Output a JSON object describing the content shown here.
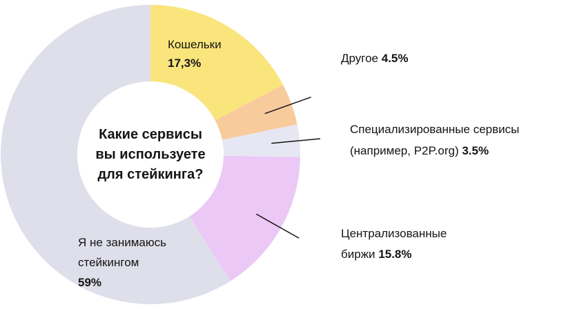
{
  "chart_data": {
    "type": "pie",
    "subtype": "donut",
    "unit": "%",
    "title": "Какие сервисы вы используете для стейкинга?",
    "title_lines": [
      "Какие сервисы",
      "вы используете",
      "для стейкинга?"
    ],
    "start_angle_deg": 0,
    "legend_position": "none",
    "segments": [
      {
        "key": "wallets",
        "label": "Кошельки",
        "value": 17.3,
        "value_label": "17,3%",
        "color": "#F9E57C",
        "label_position": "inside"
      },
      {
        "key": "other",
        "label": "Другое",
        "value": 4.5,
        "value_label": "4.5%",
        "color": "#F8CB9D",
        "label_position": "outside"
      },
      {
        "key": "specialized-services",
        "label": "Специализированные сервисы (например, P2P.org)",
        "value": 3.5,
        "value_label": "3.5%",
        "color": "#E7E7F3",
        "label_position": "outside"
      },
      {
        "key": "centralized-exchanges",
        "label": "Централизованные биржи",
        "value": 15.8,
        "value_label": "15.8%",
        "color": "#ECC8F6",
        "label_position": "outside"
      },
      {
        "key": "no-staking",
        "label": "Я не занимаюсь стейкингом",
        "value": 59,
        "value_label": "59%",
        "color": "#DFDFEB",
        "label_position": "inside"
      }
    ]
  },
  "labels": {
    "wallets": {
      "name": "Кошельки",
      "value": "17,3%"
    },
    "other": {
      "name": "Другое",
      "value": "4.5%"
    },
    "specialized": {
      "line1": "Специализированные сервисы",
      "line2": "(например, P2P.org)",
      "value": "3.5%"
    },
    "centralized": {
      "line1": "Централизованные",
      "line2": "биржи",
      "value": "15.8%"
    },
    "no_staking": {
      "line1": "Я не занимаюсь",
      "line2": "стейкингом",
      "value": "59%"
    }
  },
  "colors": {
    "background": "#ffffff",
    "text": "#141414",
    "leader_line": "#131313"
  }
}
